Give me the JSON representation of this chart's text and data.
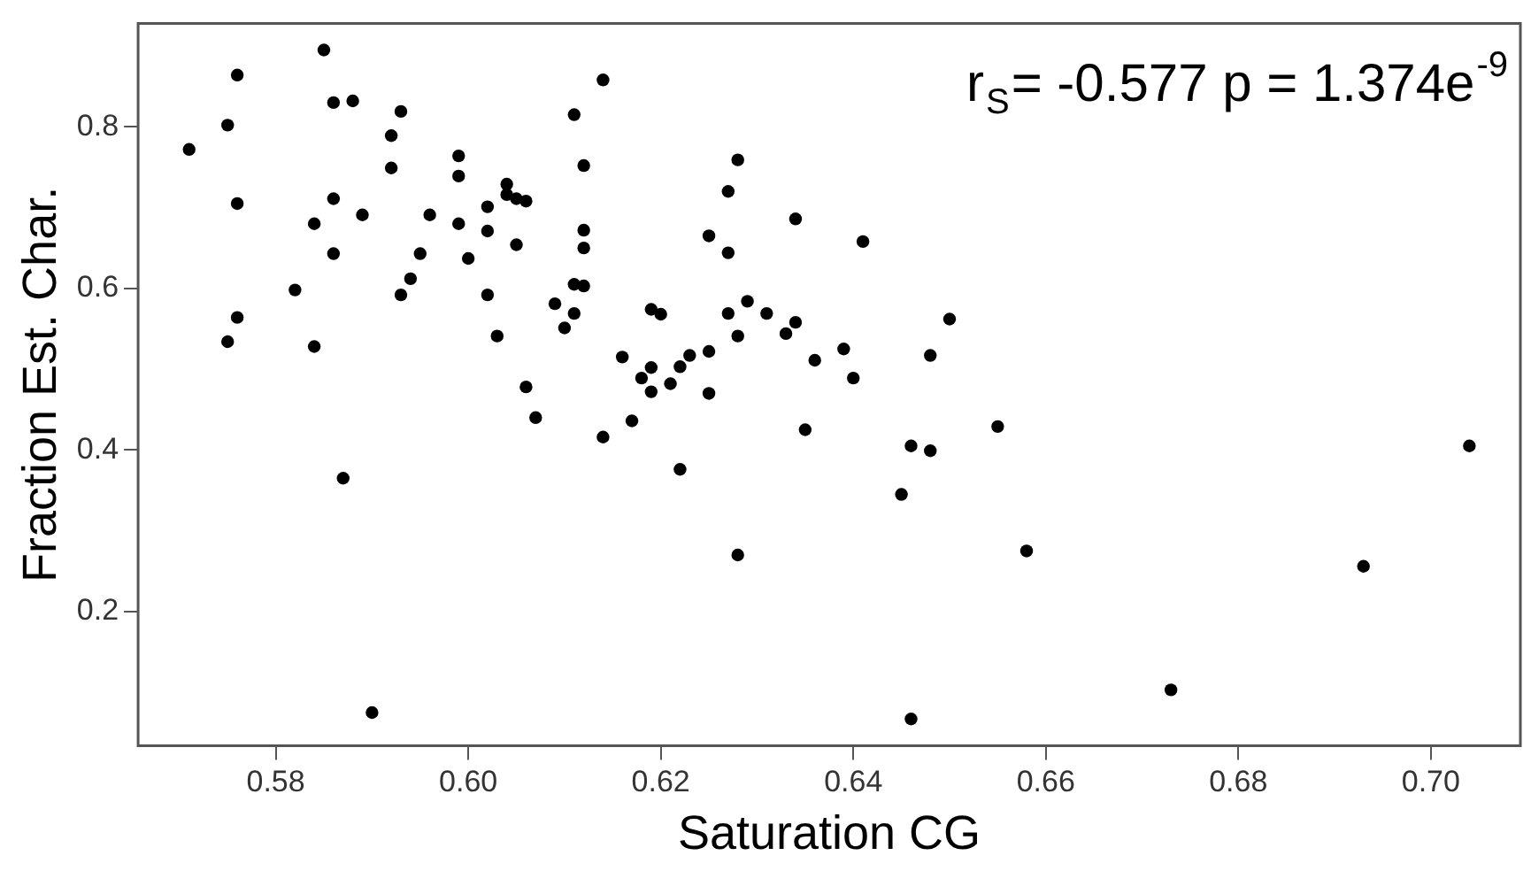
{
  "chart_data": {
    "type": "scatter",
    "xlabel": "Saturation CG",
    "ylabel": "Fraction Est. Char.",
    "annotations": [
      "r$_{S}$= -0.577 p = 1.374e$^{-9}$"
    ],
    "xlim": [
      0.5657,
      0.7093
    ],
    "xticks": [
      {
        "value": 0.58,
        "label": "0.58"
      },
      {
        "value": 0.6,
        "label": "0.60"
      },
      0.62,
      0.64,
      0.66,
      0.68,
      {
        "value": 0.7,
        "label": "0.70"
      }
    ],
    "ylim": [
      0.034,
      0.928
    ],
    "yticks": [
      0.2,
      0.4,
      0.6,
      0.8
    ],
    "grid": false,
    "legend": false,
    "marker": "circle",
    "series": [
      {
        "color": "#000000",
        "x": [
          0.585,
          0.576,
          0.586,
          0.588,
          0.593,
          0.575,
          0.592,
          0.571,
          0.592,
          0.599,
          0.599,
          0.576,
          0.586,
          0.584,
          0.589,
          0.596,
          0.599,
          0.602,
          0.602,
          0.586,
          0.595,
          0.6,
          0.594,
          0.582,
          0.593,
          0.602,
          0.576,
          0.575,
          0.584,
          0.603,
          0.587,
          0.59,
          0.614,
          0.611,
          0.612,
          0.604,
          0.604,
          0.605,
          0.606,
          0.605,
          0.612,
          0.612,
          0.611,
          0.612,
          0.609,
          0.611,
          0.61,
          0.606,
          0.607,
          0.614,
          0.628,
          0.627,
          0.634,
          0.625,
          0.627,
          0.619,
          0.62,
          0.629,
          0.627,
          0.631,
          0.628,
          0.633,
          0.634,
          0.636,
          0.616,
          0.618,
          0.619,
          0.619,
          0.622,
          0.621,
          0.623,
          0.625,
          0.625,
          0.617,
          0.622,
          0.628,
          0.635,
          0.641,
          0.65,
          0.639,
          0.648,
          0.64,
          0.655,
          0.646,
          0.648,
          0.645,
          0.658,
          0.673,
          0.646,
          0.704,
          0.693
        ],
        "values": [
          0.895,
          0.864,
          0.83,
          0.832,
          0.819,
          0.802,
          0.789,
          0.772,
          0.749,
          0.764,
          0.739,
          0.705,
          0.711,
          0.68,
          0.691,
          0.691,
          0.68,
          0.701,
          0.671,
          0.643,
          0.643,
          0.637,
          0.612,
          0.598,
          0.592,
          0.592,
          0.564,
          0.534,
          0.528,
          0.541,
          0.365,
          0.075,
          0.858,
          0.815,
          0.752,
          0.729,
          0.716,
          0.711,
          0.708,
          0.654,
          0.672,
          0.65,
          0.605,
          0.603,
          0.581,
          0.569,
          0.551,
          0.478,
          0.44,
          0.416,
          0.759,
          0.72,
          0.686,
          0.665,
          0.644,
          0.574,
          0.568,
          0.584,
          0.569,
          0.569,
          0.541,
          0.544,
          0.558,
          0.511,
          0.515,
          0.489,
          0.502,
          0.472,
          0.503,
          0.482,
          0.517,
          0.522,
          0.47,
          0.436,
          0.376,
          0.27,
          0.425,
          0.658,
          0.562,
          0.525,
          0.517,
          0.489,
          0.429,
          0.405,
          0.399,
          0.345,
          0.275,
          0.103,
          0.067,
          0.405,
          0.256
        ]
      }
    ]
  }
}
